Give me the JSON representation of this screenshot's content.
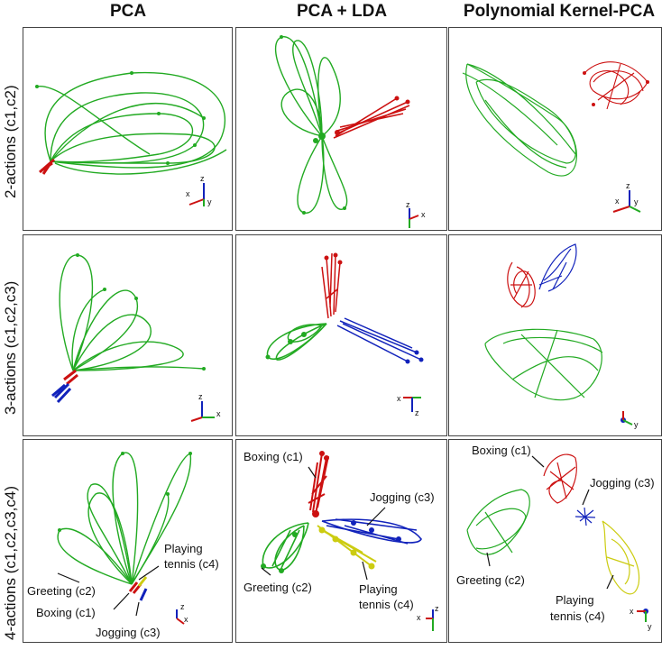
{
  "columns": [
    "PCA",
    "PCA + LDA",
    "Polynomial Kernel-PCA"
  ],
  "rows": [
    "2-actions (c1,c2)",
    "3-actions (c1,c2,c3)",
    "4-actions (c1,c2,c3,c4)"
  ],
  "colors": {
    "c1": "#cc1111",
    "c2": "#22aa22",
    "c3": "#1122bb",
    "c4": "#cccc11",
    "frame": "#444444"
  },
  "annotations": {
    "pca": {
      "playing_l1": "Playing",
      "playing_l2": "tennis (c4)",
      "greeting": "Greeting (c2)",
      "boxing": "Boxing (c1)",
      "jogging": "Jogging (c3)"
    },
    "lda": {
      "boxing": "Boxing (c1)",
      "jogging": "Jogging (c3)",
      "greeting": "Greeting (c2)",
      "playing_l1": "Playing",
      "playing_l2": "tennis (c4)"
    },
    "kpca": {
      "boxing": "Boxing (c1)",
      "jogging": "Jogging (c3)",
      "greeting": "Greeting (c2)",
      "playing_l1": "Playing",
      "playing_l2": "tennis (c4)"
    }
  },
  "axes": {
    "x": "x",
    "y": "y",
    "z": "z"
  }
}
